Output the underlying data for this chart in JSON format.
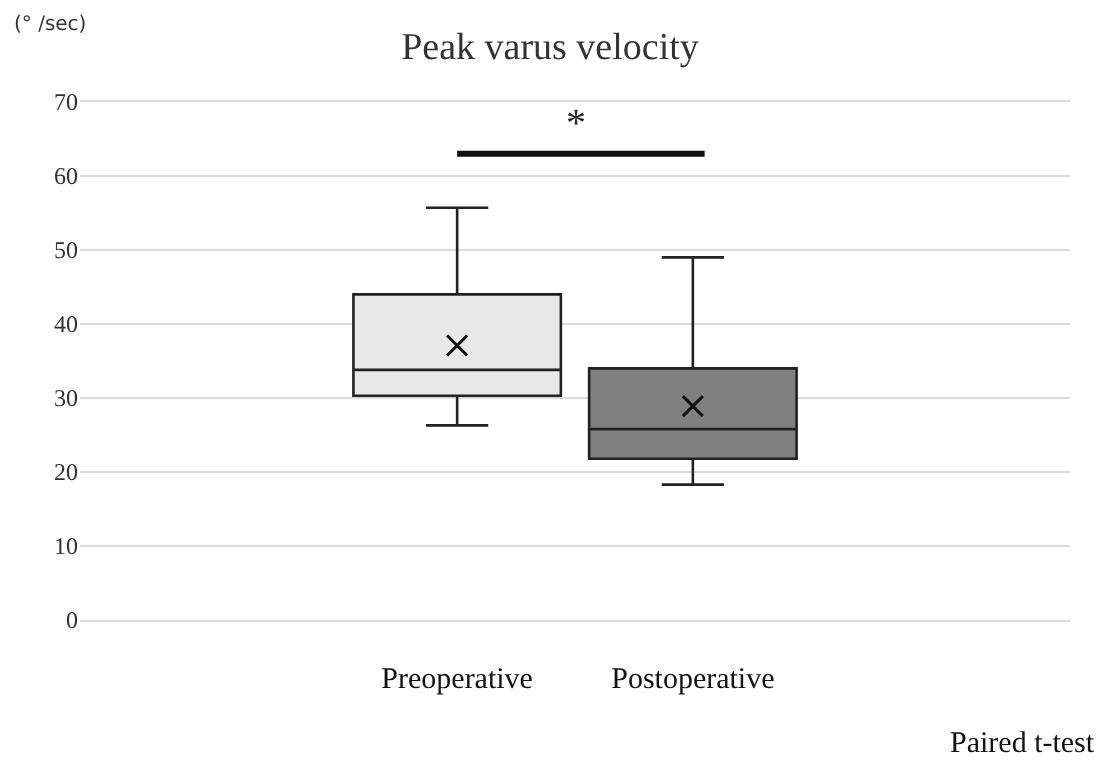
{
  "chart_data": {
    "type": "box",
    "title": "Peak varus velocity",
    "ylabel": "(° /sec)",
    "categories": [
      "Preoperative",
      "Postoperative"
    ],
    "colors": [
      "#e8e8e8",
      "#808080"
    ],
    "boxes": [
      {
        "low": 26.3,
        "q1": 30.3,
        "median": 33.8,
        "q3": 44,
        "high": 55.7,
        "mean": 37.1
      },
      {
        "low": 18.3,
        "q1": 21.8,
        "median": 25.8,
        "q3": 34,
        "high": 49,
        "mean": 28.9
      }
    ],
    "ylim": [
      0,
      70
    ],
    "yticks": [
      0,
      10,
      20,
      30,
      40,
      50,
      60,
      70
    ],
    "grid": "y",
    "marker": "cross",
    "annotations": [
      "*",
      "Paired t-test"
    ]
  }
}
